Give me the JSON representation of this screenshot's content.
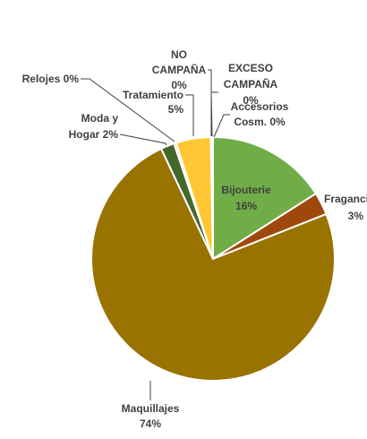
{
  "chart_data": {
    "type": "pie",
    "title": "",
    "start_angle_deg": 0,
    "direction": "clockwise",
    "legend": "none",
    "slices": [
      {
        "label": "Bijouterie",
        "pct_label": "16%",
        "value": 16.0,
        "color": "#70AD47"
      },
      {
        "label": "Fragancias",
        "pct_label": "3%",
        "value": 3.0,
        "color": "#9E480E"
      },
      {
        "label": "Maquillajes",
        "pct_label": "74%",
        "value": 74.0,
        "color": "#997300"
      },
      {
        "label": "Moda y Hogar",
        "pct_label": "2%",
        "value": 1.8,
        "color": "#43682B"
      },
      {
        "label": "Relojes",
        "pct_label": "0%",
        "value": 0.3,
        "color": "#F4B183"
      },
      {
        "label": "Tratamiento",
        "pct_label": "5%",
        "value": 4.6,
        "color": "#FFC733"
      },
      {
        "label": "NO CAMPAÑA",
        "pct_label": "0%",
        "value": 0.1,
        "color": "#A9D18E"
      },
      {
        "label": "EXCESO CAMPAÑA",
        "pct_label": "0%",
        "value": 0.1,
        "color": "#C55A11"
      },
      {
        "label": "Accesorios Cosm.",
        "pct_label": "0%",
        "value": 0.1,
        "color": "#7F6000"
      }
    ]
  }
}
